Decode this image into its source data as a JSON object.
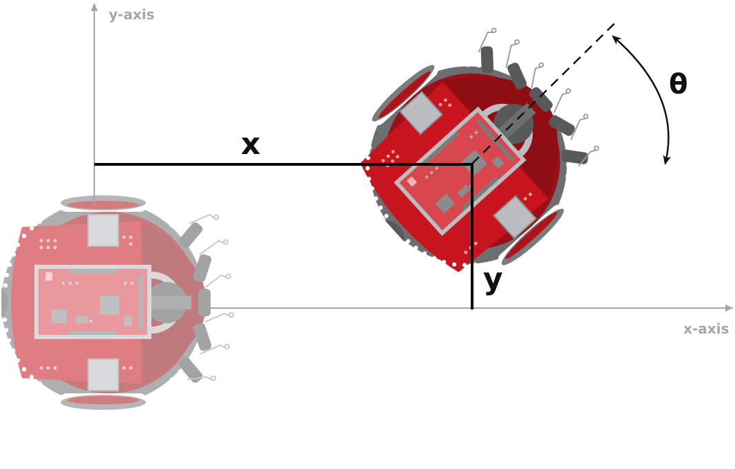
{
  "labels": {
    "y_axis": "y-axis",
    "x_axis": "x-axis",
    "x": "x",
    "y": "y",
    "theta": "θ"
  },
  "colors": {
    "axis": "#a6a6a6",
    "dimension": "#000000",
    "robot_shell": "#6d6e70",
    "robot_board": "#c8141e",
    "robot_metal": "#bcbdc0",
    "robot_faded_board": "#e06a70"
  },
  "robots": [
    {
      "id": "robot-origin",
      "state": "faded"
    },
    {
      "id": "robot-pose",
      "state": "solid"
    }
  ]
}
